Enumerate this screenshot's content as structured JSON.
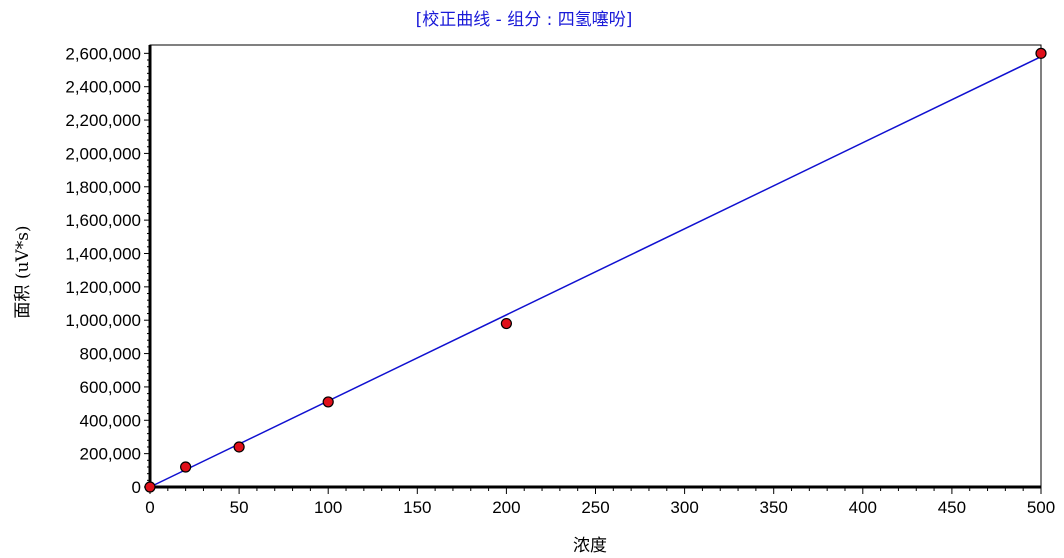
{
  "chart_data": {
    "type": "scatter",
    "title": "[校正曲线 - 组分 : 四氢噻吩]",
    "xlabel": "浓度",
    "ylabel": "面积 (uV*s)",
    "xlim": [
      0,
      500
    ],
    "ylim": [
      0,
      2650000
    ],
    "x_ticks": [
      0,
      50,
      100,
      150,
      200,
      250,
      300,
      350,
      400,
      450,
      500
    ],
    "x_tick_labels": [
      "0",
      "50",
      "100",
      "150",
      "200",
      "250",
      "300",
      "350",
      "400",
      "450",
      "500"
    ],
    "y_ticks": [
      0,
      200000,
      400000,
      600000,
      800000,
      1000000,
      1200000,
      1400000,
      1600000,
      1800000,
      2000000,
      2200000,
      2400000,
      2600000
    ],
    "y_tick_labels": [
      "0",
      "200,000",
      "400,000",
      "600,000",
      "800,000",
      "1,000,000",
      "1,200,000",
      "1,400,000",
      "1,600,000",
      "1,800,000",
      "2,000,000",
      "2,200,000",
      "2,400,000",
      "2,600,000"
    ],
    "points": [
      {
        "x": 0,
        "y": 0
      },
      {
        "x": 20,
        "y": 120000
      },
      {
        "x": 50,
        "y": 240000
      },
      {
        "x": 100,
        "y": 510000
      },
      {
        "x": 200,
        "y": 980000
      },
      {
        "x": 500,
        "y": 2600000
      }
    ],
    "fit_line": {
      "x": [
        0,
        500
      ],
      "y": [
        0,
        2580000
      ]
    },
    "grid": false,
    "legend": "none",
    "colors": {
      "title": "#1a1ad8",
      "fit_line": "#1010d0",
      "point_fill": "#e0101a",
      "point_stroke": "#000000",
      "axis": "#000000"
    }
  }
}
